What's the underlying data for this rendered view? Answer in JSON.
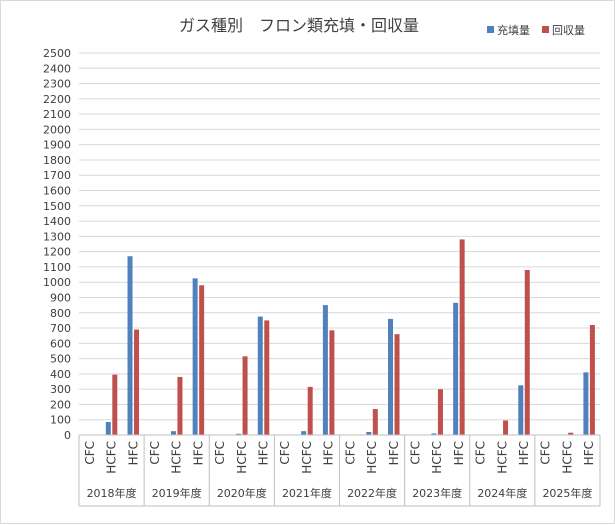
{
  "chart_data": {
    "type": "bar",
    "title": "ガス種別　フロン類充填・回収量",
    "groups": [
      "2018年度",
      "2019年度",
      "2020年度",
      "2021年度",
      "2022年度",
      "2023年度",
      "2024年度",
      "2025年度"
    ],
    "categories": [
      "CFC",
      "HCFC",
      "HFC"
    ],
    "series": [
      {
        "name": "充填量",
        "color": "#4f81bd",
        "values": [
          [
            0,
            85,
            1170
          ],
          [
            0,
            25,
            1025
          ],
          [
            0,
            8,
            775
          ],
          [
            0,
            25,
            850
          ],
          [
            0,
            20,
            760
          ],
          [
            0,
            10,
            865
          ],
          [
            0,
            0,
            325
          ],
          [
            0,
            0,
            410
          ]
        ]
      },
      {
        "name": "回収量",
        "color": "#c0504d",
        "values": [
          [
            0,
            395,
            690
          ],
          [
            0,
            380,
            980
          ],
          [
            0,
            515,
            750
          ],
          [
            0,
            315,
            685
          ],
          [
            0,
            170,
            660
          ],
          [
            0,
            300,
            1280
          ],
          [
            0,
            95,
            1080
          ],
          [
            0,
            15,
            720
          ]
        ]
      }
    ],
    "ylim": [
      0,
      2500
    ],
    "y_ticks": [
      0,
      100,
      200,
      300,
      400,
      500,
      600,
      700,
      800,
      900,
      1000,
      1100,
      1200,
      1300,
      1400,
      1500,
      1600,
      1700,
      1800,
      1900,
      2000,
      2100,
      2200,
      2300,
      2400,
      2500
    ],
    "grid": true,
    "legend_position": "top-right"
  }
}
